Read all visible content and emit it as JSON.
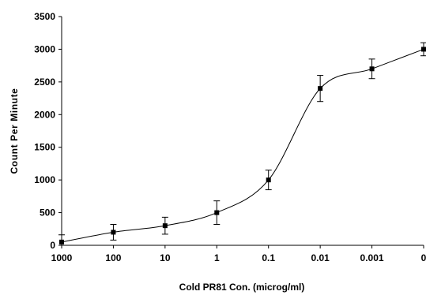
{
  "chart_data": {
    "type": "line",
    "title": "",
    "xlabel": "Cold PR81 Con. (microg/ml)",
    "ylabel": "Count Per Minute",
    "categories": [
      "1000",
      "100",
      "10",
      "1",
      "0.1",
      "0.01",
      "0.001",
      "0"
    ],
    "ylim": [
      0,
      3500
    ],
    "yticks": [
      "0",
      "500",
      "1000",
      "1500",
      "2000",
      "2500",
      "3000",
      "3500"
    ],
    "grid": false,
    "legend": "none",
    "series": [
      {
        "values": [
          50,
          200,
          300,
          500,
          1000,
          2400,
          2700,
          3000
        ],
        "error": [
          110,
          120,
          130,
          180,
          150,
          200,
          150,
          100
        ],
        "marker": "square",
        "smooth": true
      }
    ],
    "colors": {
      "line": "#000000",
      "marker": "#000000",
      "axis": "#000000"
    }
  }
}
